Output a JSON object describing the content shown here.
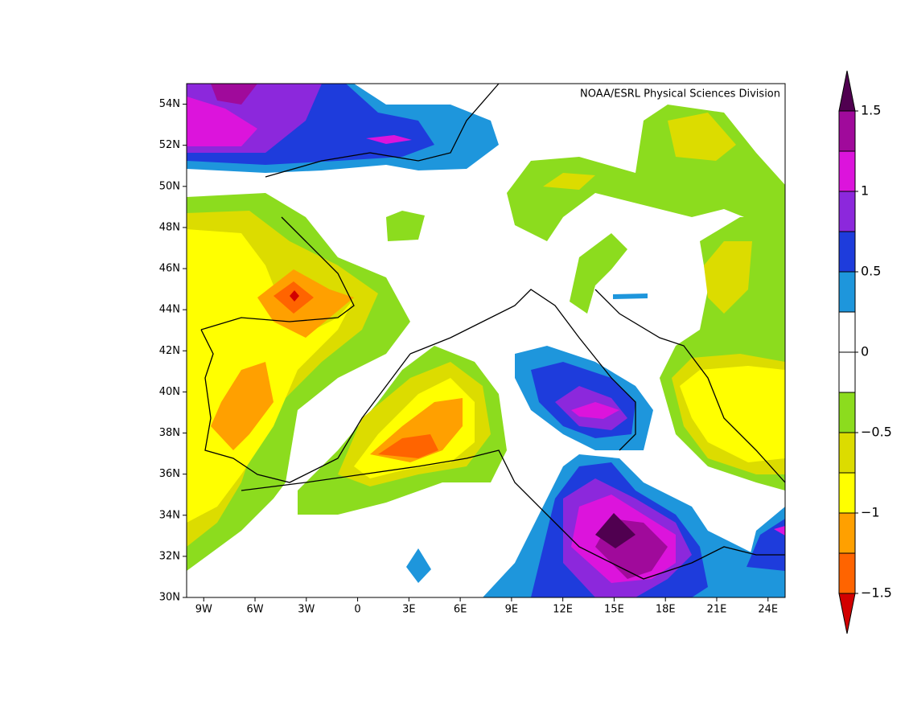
{
  "map": {
    "credit": "NOAA/ESRL Physical Sciences Division",
    "xlim": [
      -10,
      25
    ],
    "ylim": [
      30,
      55
    ],
    "xticks": [
      {
        "value": -9,
        "label": "9W"
      },
      {
        "value": -6,
        "label": "6W"
      },
      {
        "value": -3,
        "label": "3W"
      },
      0,
      {
        "value": 3,
        "label": "3E"
      },
      {
        "value": 6,
        "label": "6E"
      },
      {
        "value": 9,
        "label": "9E"
      },
      {
        "value": 12,
        "label": "12E"
      },
      {
        "value": 15,
        "label": "15E"
      },
      {
        "value": 18,
        "label": "18E"
      },
      {
        "value": 21,
        "label": "21E"
      },
      {
        "value": 24,
        "label": "24E"
      }
    ],
    "yticks": [
      {
        "value": 30,
        "label": "30N"
      },
      {
        "value": 32,
        "label": "32N"
      },
      {
        "value": 34,
        "label": "34N"
      },
      {
        "value": 36,
        "label": "36N"
      },
      {
        "value": 38,
        "label": "38N"
      },
      {
        "value": 40,
        "label": "40N"
      },
      {
        "value": 42,
        "label": "42N"
      },
      {
        "value": 44,
        "label": "44N"
      },
      {
        "value": 46,
        "label": "46N"
      },
      {
        "value": 48,
        "label": "48N"
      },
      {
        "value": 50,
        "label": "50N"
      },
      {
        "value": 52,
        "label": "52N"
      },
      {
        "value": 54,
        "label": "54N"
      }
    ],
    "colorbar": {
      "lim": [
        -1.5,
        1.5
      ],
      "ticks": [
        1.5,
        1,
        0.5,
        0,
        {
          "value": -0.5,
          "label": "−0.5"
        },
        {
          "value": -1,
          "label": "−1"
        },
        {
          "value": -1.5,
          "label": "−1.5"
        }
      ],
      "over_color": "#500050",
      "under_color": "#d20000",
      "colors": [
        "#a00a9b",
        "#dc14dc",
        "#8c28dc",
        "#1e3cdc",
        "#1e96dc",
        "#ffffff",
        "#ffffff",
        "#8cdc1e",
        "#dcdc00",
        "#ffff00",
        "#ffa000",
        "#ff6400"
      ]
    }
  }
}
